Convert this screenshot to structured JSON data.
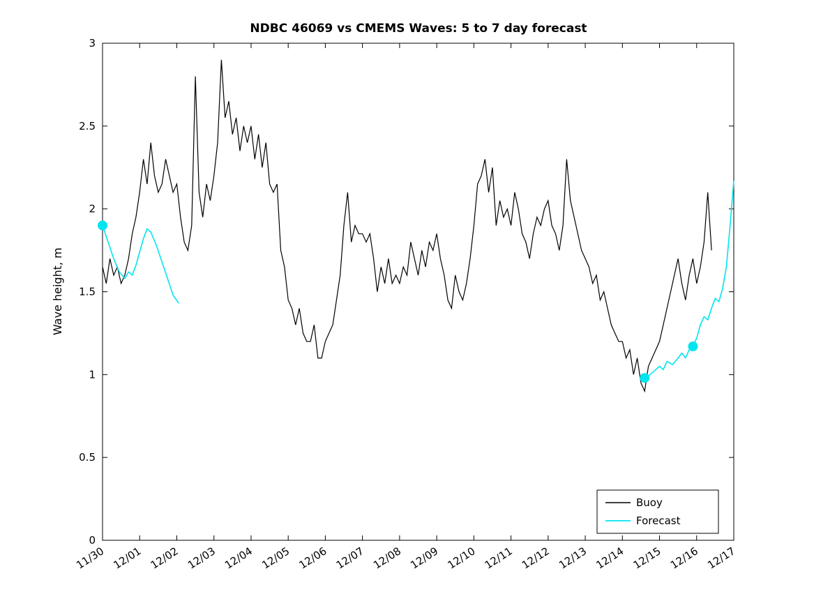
{
  "title": "NDBC 46069 vs CMEMS Waves: 5 to 7 day forecast",
  "chart_data": {
    "type": "line",
    "title": "NDBC 46069 vs CMEMS Waves: 5 to 7 day forecast",
    "xlabel": "",
    "ylabel": "Wave height, m",
    "ylim": [
      0,
      3
    ],
    "x_range": [
      0,
      17
    ],
    "grid": false,
    "legend_position": "bottom-right-inside",
    "y_ticks": [
      0,
      0.5,
      1,
      1.5,
      2,
      2.5,
      3
    ],
    "y_tick_labels": [
      "0",
      "0.5",
      "1",
      "1.5",
      "2",
      "2.5",
      "3"
    ],
    "x_ticks": [
      0,
      1,
      2,
      3,
      4,
      5,
      6,
      7,
      8,
      9,
      10,
      11,
      12,
      13,
      14,
      15,
      16,
      17
    ],
    "x_tick_labels": [
      "11/30",
      "12/01",
      "12/02",
      "12/03",
      "12/04",
      "12/05",
      "12/06",
      "12/07",
      "12/08",
      "12/09",
      "12/10",
      "12/11",
      "12/12",
      "12/13",
      "12/14",
      "12/15",
      "12/16",
      "12/17"
    ],
    "colors": {
      "buoy": "#000000",
      "forecast": "#00E5EE"
    },
    "series": [
      {
        "name": "Buoy",
        "color_key": "buoy",
        "x_start": 0,
        "x_step": 0.1,
        "y": [
          1.65,
          1.55,
          1.7,
          1.6,
          1.65,
          1.55,
          1.6,
          1.7,
          1.85,
          1.95,
          2.1,
          2.3,
          2.15,
          2.4,
          2.2,
          2.1,
          2.15,
          2.3,
          2.2,
          2.1,
          2.15,
          1.95,
          1.8,
          1.75,
          1.9,
          2.8,
          2.1,
          1.95,
          2.15,
          2.05,
          2.2,
          2.4,
          2.9,
          2.55,
          2.65,
          2.45,
          2.55,
          2.35,
          2.5,
          2.4,
          2.5,
          2.3,
          2.45,
          2.25,
          2.4,
          2.15,
          2.1,
          2.15,
          1.75,
          1.65,
          1.45,
          1.4,
          1.3,
          1.4,
          1.25,
          1.2,
          1.2,
          1.3,
          1.1,
          1.1,
          1.2,
          1.25,
          1.3,
          1.45,
          1.6,
          1.9,
          2.1,
          1.8,
          1.9,
          1.85,
          1.85,
          1.8,
          1.85,
          1.7,
          1.5,
          1.65,
          1.55,
          1.7,
          1.55,
          1.6,
          1.55,
          1.65,
          1.6,
          1.8,
          1.7,
          1.6,
          1.75,
          1.65,
          1.8,
          1.75,
          1.85,
          1.7,
          1.6,
          1.45,
          1.4,
          1.6,
          1.5,
          1.45,
          1.55,
          1.7,
          1.9,
          2.15,
          2.2,
          2.3,
          2.1,
          2.25,
          1.9,
          2.05,
          1.95,
          2.0,
          1.9,
          2.1,
          2.0,
          1.85,
          1.8,
          1.7,
          1.85,
          1.95,
          1.9,
          2.0,
          2.05,
          1.9,
          1.85,
          1.75,
          1.9,
          2.3,
          2.05,
          1.95,
          1.85,
          1.75,
          1.7,
          1.65,
          1.55,
          1.6,
          1.45,
          1.5,
          1.4,
          1.3,
          1.25,
          1.2,
          1.2,
          1.1,
          1.15,
          1.0,
          1.1,
          0.95,
          0.9,
          1.05,
          1.1,
          1.15,
          1.2,
          1.3,
          1.4,
          1.5,
          1.6,
          1.7,
          1.55,
          1.45,
          1.6,
          1.7,
          1.55,
          1.65,
          1.8,
          2.1,
          1.75
        ]
      },
      {
        "name": "Forecast",
        "color_key": "forecast",
        "segments": [
          {
            "x": [
              0.0,
              0.15,
              0.3,
              0.45,
              0.6,
              0.7,
              0.8,
              0.9,
              1.0,
              1.1,
              1.2,
              1.3,
              1.45,
              1.6,
              1.75,
              1.9,
              2.05
            ],
            "y": [
              1.9,
              1.8,
              1.7,
              1.62,
              1.58,
              1.62,
              1.6,
              1.66,
              1.74,
              1.82,
              1.88,
              1.86,
              1.78,
              1.68,
              1.58,
              1.48,
              1.43
            ]
          },
          {
            "x": [
              14.6,
              14.75,
              14.9,
              15.0,
              15.1,
              15.2,
              15.35,
              15.5,
              15.6,
              15.7,
              15.8,
              15.9,
              16.0,
              16.1,
              16.2,
              16.3,
              16.4,
              16.5,
              16.6,
              16.7,
              16.8,
              16.9,
              17.0
            ],
            "y": [
              0.98,
              1.0,
              1.03,
              1.05,
              1.03,
              1.08,
              1.06,
              1.1,
              1.13,
              1.1,
              1.15,
              1.17,
              1.22,
              1.3,
              1.35,
              1.33,
              1.4,
              1.46,
              1.44,
              1.52,
              1.65,
              1.9,
              2.17
            ]
          }
        ],
        "markers": [
          {
            "x": 0.0,
            "y": 1.9
          },
          {
            "x": 14.6,
            "y": 0.98
          },
          {
            "x": 15.9,
            "y": 1.17
          }
        ]
      }
    ],
    "legend": {
      "entries": [
        "Buoy",
        "Forecast"
      ]
    }
  }
}
